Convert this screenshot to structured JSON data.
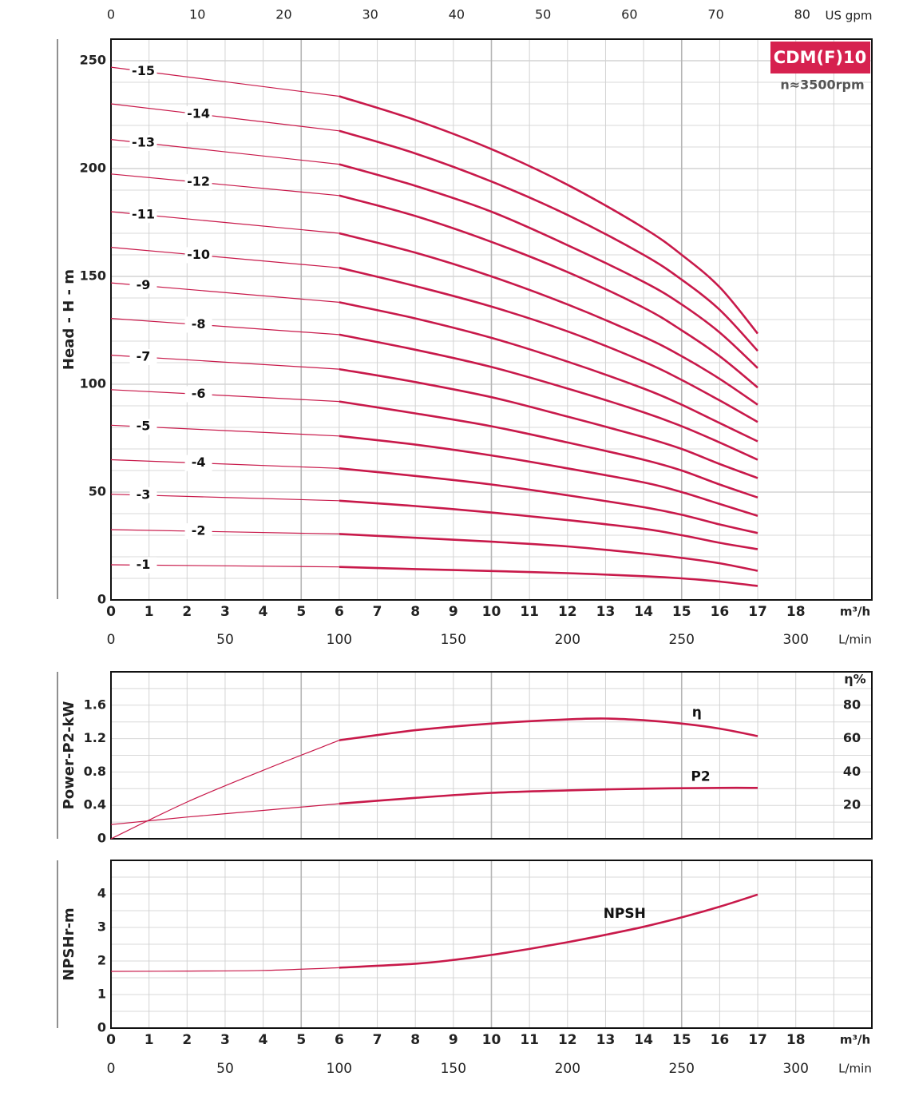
{
  "header": {
    "model": "CDM(F)10",
    "speed": "n≈3500rpm",
    "brand_color": "#d6214f",
    "curve_color": "#c8194a"
  },
  "axes": {
    "x_m3h_ticks": [
      "0",
      "1",
      "2",
      "3",
      "4",
      "5",
      "6",
      "7",
      "8",
      "9",
      "10",
      "11",
      "12",
      "13",
      "14",
      "15",
      "16",
      "17",
      "18"
    ],
    "x_m3h_unit": "m³/h",
    "x_lmin_ticks": [
      "0",
      "50",
      "100",
      "150",
      "200",
      "250",
      "300"
    ],
    "x_lmin_unit": "L/min",
    "x_usgpm_ticks": [
      "0",
      "10",
      "20",
      "30",
      "40",
      "50",
      "60",
      "70",
      "80"
    ],
    "x_usgpm_unit": "US gpm"
  },
  "chart_data": [
    {
      "type": "line",
      "title": "",
      "xlabel": "m³/h",
      "ylabel": "Head - H - m",
      "xlim": [
        0,
        20
      ],
      "ylim": [
        0,
        260
      ],
      "yticks": [
        "0",
        "50",
        "100",
        "150",
        "200",
        "250"
      ],
      "grid": true,
      "x": [
        0,
        6,
        8,
        10,
        12,
        14,
        15,
        16,
        17
      ],
      "series": [
        {
          "name": "-1",
          "values": [
            16.3,
            15.3,
            14.3,
            13.4,
            12.4,
            11.0,
            10.0,
            8.5,
            6.5
          ]
        },
        {
          "name": "-2",
          "values": [
            32.6,
            30.6,
            28.8,
            27.0,
            24.8,
            21.5,
            19.5,
            17.0,
            13.5
          ]
        },
        {
          "name": "-3",
          "values": [
            49.0,
            46.0,
            43.5,
            40.5,
            37.0,
            33.0,
            30.0,
            26.5,
            23.5
          ]
        },
        {
          "name": "-4",
          "values": [
            65.0,
            61.0,
            57.5,
            53.5,
            48.5,
            43.0,
            39.5,
            35.0,
            31.0
          ]
        },
        {
          "name": "-5",
          "values": [
            81.0,
            76.0,
            72.0,
            67.0,
            61.0,
            54.5,
            50.0,
            44.5,
            39.0
          ]
        },
        {
          "name": "-6",
          "values": [
            97.5,
            92.0,
            86.5,
            80.5,
            73.0,
            65.0,
            60.0,
            53.5,
            47.5
          ]
        },
        {
          "name": "-7",
          "values": [
            113.5,
            107.0,
            101.0,
            94.0,
            85.0,
            75.5,
            70.0,
            63.0,
            56.5
          ]
        },
        {
          "name": "-8",
          "values": [
            130.5,
            123.0,
            116.0,
            108.0,
            98.0,
            87.0,
            80.5,
            73.0,
            65.0
          ]
        },
        {
          "name": "-9",
          "values": [
            147.0,
            138.0,
            130.5,
            121.5,
            110.5,
            98.0,
            90.5,
            82.0,
            73.5
          ]
        },
        {
          "name": "-10",
          "values": [
            163.5,
            154.0,
            145.5,
            136.0,
            124.5,
            110.5,
            102.0,
            92.5,
            82.5
          ]
        },
        {
          "name": "-11",
          "values": [
            180.0,
            170.0,
            161.0,
            150.0,
            137.0,
            122.0,
            113.0,
            102.5,
            90.5
          ]
        },
        {
          "name": "-12",
          "values": [
            197.5,
            187.5,
            178.0,
            166.0,
            152.0,
            135.5,
            125.0,
            113.0,
            98.5
          ]
        },
        {
          "name": "-13",
          "values": [
            213.5,
            202.0,
            192.0,
            180.0,
            164.5,
            147.5,
            137.0,
            124.0,
            107.5
          ]
        },
        {
          "name": "-14",
          "values": [
            230.0,
            217.5,
            207.0,
            194.0,
            178.5,
            160.0,
            148.5,
            134.5,
            115.5
          ]
        },
        {
          "name": "-15",
          "values": [
            247.0,
            233.5,
            222.5,
            209.0,
            192.5,
            172.5,
            160.0,
            145.0,
            123.5
          ]
        }
      ]
    },
    {
      "type": "line",
      "title": "",
      "xlabel": "m³/h",
      "ylabel": "Power-P2-kW",
      "ylabel_right": "η%",
      "xlim": [
        0,
        20
      ],
      "ylim": [
        0,
        2.0
      ],
      "ylim_right": [
        0,
        100
      ],
      "yticks": [
        "0",
        "0.4",
        "0.8",
        "1.2",
        "1.6"
      ],
      "yticks_right": [
        "20",
        "40",
        "60",
        "80"
      ],
      "grid": true,
      "series": [
        {
          "name": "η",
          "axis": "right",
          "x": [
            0,
            2,
            4,
            6,
            8,
            10,
            12,
            13,
            14,
            15,
            16,
            17
          ],
          "values": [
            0,
            22,
            41,
            59,
            65,
            69,
            71.5,
            72,
            71,
            69,
            66,
            61.5
          ]
        },
        {
          "name": "P2",
          "axis": "left",
          "x": [
            0,
            2,
            4,
            6,
            8,
            10,
            12,
            14,
            16,
            17
          ],
          "values": [
            0.17,
            0.26,
            0.34,
            0.42,
            0.49,
            0.55,
            0.58,
            0.6,
            0.61,
            0.61
          ]
        }
      ]
    },
    {
      "type": "line",
      "title": "",
      "xlabel": "m³/h",
      "ylabel": "NPSHr-m",
      "xlim": [
        0,
        20
      ],
      "ylim": [
        0,
        5
      ],
      "yticks": [
        "0",
        "1",
        "2",
        "3",
        "4"
      ],
      "grid": true,
      "series": [
        {
          "name": "NPSH",
          "x": [
            0,
            2,
            4,
            6,
            8,
            9,
            10,
            11,
            12,
            13,
            14,
            15,
            16,
            17
          ],
          "values": [
            1.69,
            1.7,
            1.72,
            1.8,
            1.92,
            2.03,
            2.18,
            2.36,
            2.56,
            2.78,
            3.02,
            3.3,
            3.62,
            3.98
          ]
        }
      ]
    }
  ]
}
